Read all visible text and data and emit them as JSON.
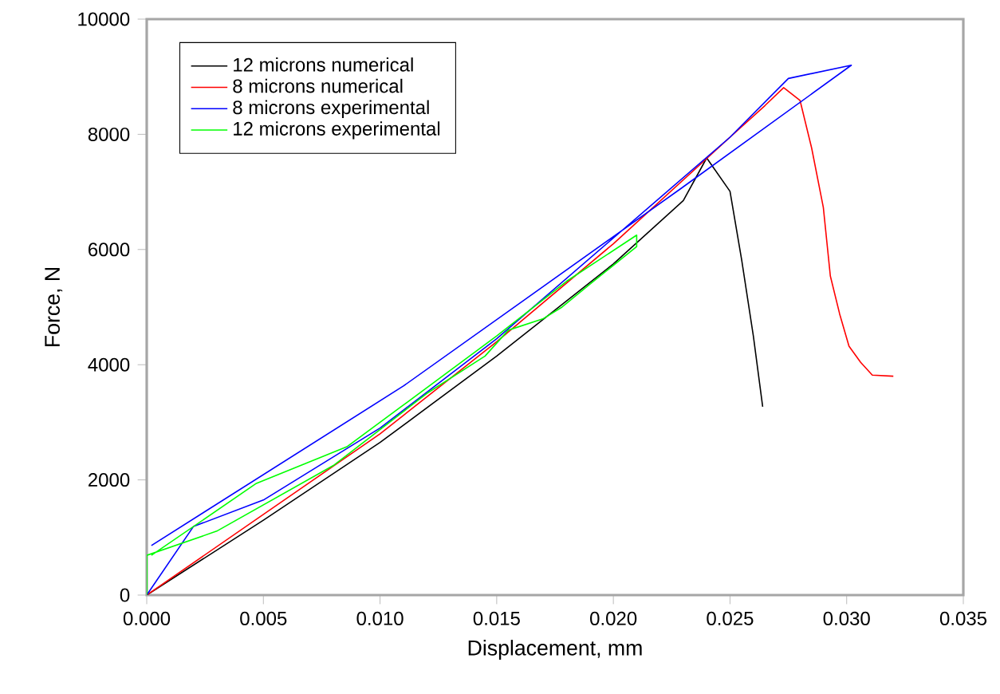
{
  "chart_data": {
    "type": "line",
    "xlabel": "Displacement, mm",
    "ylabel": "Force, N",
    "xlim": [
      0,
      0.035
    ],
    "ylim": [
      0,
      10000
    ],
    "xticks": [
      {
        "value": 0,
        "label": "0.000"
      },
      {
        "value": 0.005,
        "label": "0.005"
      },
      {
        "value": 0.01,
        "label": "0.010"
      },
      {
        "value": 0.015,
        "label": "0.015"
      },
      {
        "value": 0.02,
        "label": "0.020"
      },
      {
        "value": 0.025,
        "label": "0.025"
      },
      {
        "value": 0.03,
        "label": "0.030"
      },
      {
        "value": 0.035,
        "label": "0.035"
      }
    ],
    "yticks": [
      0,
      2000,
      4000,
      6000,
      8000,
      10000
    ],
    "grid": false,
    "legend": "top left",
    "marker": "none",
    "line_style": "solid",
    "series": [
      {
        "name": "12 microns numerical",
        "color": "#000000",
        "x": [
          0,
          0.005,
          0.01,
          0.015,
          0.02,
          0.023,
          0.024,
          0.025,
          0.0255,
          0.026,
          0.0264
        ],
        "values": [
          0,
          1300,
          2650,
          4150,
          5750,
          6850,
          7590,
          7010,
          5820,
          4500,
          3270
        ]
      },
      {
        "name": "8 microns numerical",
        "color": "#ff0000",
        "x": [
          0,
          0.005,
          0.01,
          0.015,
          0.02,
          0.025,
          0.0265,
          0.0273,
          0.028,
          0.0285,
          0.029,
          0.0293,
          0.0297,
          0.0301,
          0.0306,
          0.0311,
          0.032
        ],
        "values": [
          0,
          1400,
          2800,
          4400,
          6100,
          7950,
          8500,
          8810,
          8590,
          7760,
          6730,
          5540,
          4880,
          4320,
          4040,
          3820,
          3800
        ]
      },
      {
        "name": "8 microns experimental",
        "color": "#0000ff",
        "x": [
          0,
          0.002,
          0.005,
          0.01,
          0.015,
          0.02,
          0.025,
          0.0275,
          0.0302,
          0.0229,
          0.011,
          0.0002
        ],
        "values": [
          0,
          1190,
          1650,
          2900,
          4450,
          6200,
          7950,
          8970,
          9200,
          7060,
          3630,
          860
        ]
      },
      {
        "name": "12 microns experimental",
        "color": "#00ff00",
        "x": [
          0,
          0,
          0.003,
          0.008,
          0.012,
          0.0145,
          0.0155,
          0.017,
          0.0178,
          0.019,
          0.021,
          0.021,
          0.018,
          0.015,
          0.0086,
          0.0047,
          0.0002
        ],
        "values": [
          0,
          690,
          1110,
          2250,
          3500,
          4150,
          4600,
          4800,
          5000,
          5400,
          6050,
          6250,
          5450,
          4500,
          2580,
          1940,
          690
        ]
      }
    ]
  }
}
